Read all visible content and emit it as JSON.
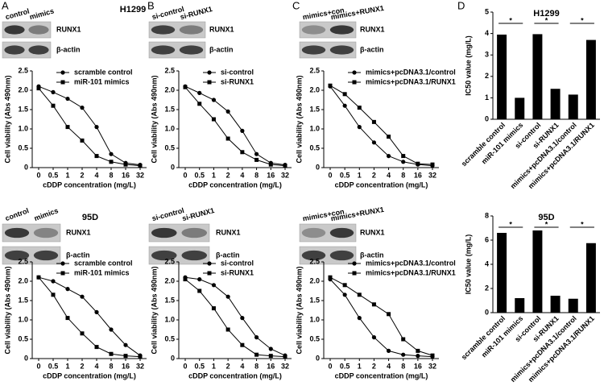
{
  "letters": [
    "A",
    "B",
    "C",
    "D"
  ],
  "blots": [
    {
      "cell_line": "H1299",
      "lanes": [
        "control",
        "mimics"
      ],
      "rows": [
        "RUNX1",
        "β-actin"
      ]
    },
    {
      "lanes": [
        "si-control",
        "si-RUNX1"
      ],
      "rows": [
        "RUNX1",
        "β-actin"
      ]
    },
    {
      "lanes": [
        "mimics+con",
        "mimics+RUNX1"
      ],
      "rows": [
        "RUNX1",
        "β-actin"
      ]
    },
    {
      "cell_line": "95D",
      "lanes": [
        "control",
        "mimics"
      ],
      "rows": [
        "RUNX1",
        "β-actin"
      ]
    },
    {
      "lanes": [
        "si-control",
        "si-RUNX1"
      ],
      "rows": [
        "RUNX1",
        "β-actin"
      ]
    },
    {
      "lanes": [
        "mimics+con",
        "mimics+RUNX1"
      ],
      "rows": [
        "RUNX1",
        "β-actin"
      ]
    }
  ],
  "chart_data": [
    {
      "type": "line",
      "xlabel": "cDDP concentration (mg/L)",
      "ylabel": "Cell viability (Abs 490nm)",
      "categories": [
        "0",
        "0.5",
        "1",
        "2",
        "4",
        "8",
        "16",
        "32"
      ],
      "ylim": [
        0,
        2.5
      ],
      "yticks": [
        0,
        0.5,
        {
          "value": 1,
          "label": "1.0"
        },
        1.5,
        {
          "value": 2,
          "label": "2.0"
        },
        2.5
      ],
      "series": [
        {
          "name": "scramble control",
          "color": "#000000",
          "marker": "circle",
          "values": [
            2.1,
            1.95,
            1.78,
            1.55,
            1.05,
            0.35,
            0.12,
            0.07
          ]
        },
        {
          "name": "miR-101 mimics",
          "color": "#000000",
          "marker": "square",
          "values": [
            2.05,
            1.6,
            1.05,
            0.7,
            0.3,
            0.15,
            0.08,
            0.05
          ]
        }
      ]
    },
    {
      "type": "line",
      "xlabel": "cDDP concentration (mg/L)",
      "ylabel": "Cell viability (Abs 490nm)",
      "categories": [
        "0",
        "0.5",
        "1",
        "2",
        "4",
        "8",
        "16",
        "32"
      ],
      "ylim": [
        0,
        2.5
      ],
      "yticks": [
        0,
        0.5,
        {
          "value": 1,
          "label": "1.0"
        },
        1.5,
        {
          "value": 2,
          "label": "2.0"
        },
        2.5
      ],
      "series": [
        {
          "name": "si-control",
          "color": "#000000",
          "marker": "circle",
          "values": [
            2.1,
            1.93,
            1.75,
            1.45,
            0.95,
            0.35,
            0.12,
            0.07
          ]
        },
        {
          "name": "si-RUNX1",
          "color": "#000000",
          "marker": "square",
          "values": [
            2.08,
            1.65,
            1.25,
            0.75,
            0.4,
            0.2,
            0.08,
            0.05
          ]
        }
      ]
    },
    {
      "type": "line",
      "xlabel": "cDDP concentration (mg/L)",
      "ylabel": "Cell viability (Abs 490nm)",
      "categories": [
        "0",
        "0.5",
        "1",
        "2",
        "4",
        "8",
        "16",
        "32"
      ],
      "ylim": [
        0,
        2.5
      ],
      "yticks": [
        0,
        0.5,
        {
          "value": 1,
          "label": "1.0"
        },
        1.5,
        {
          "value": 2,
          "label": "2.0"
        },
        2.5
      ],
      "series": [
        {
          "name": "mimics+pcDNA3.1/control",
          "color": "#000000",
          "marker": "circle",
          "values": [
            2.1,
            1.6,
            1.05,
            0.65,
            0.3,
            0.15,
            0.08,
            0.05
          ]
        },
        {
          "name": "mimics+pcDNA3.1/RUNX1",
          "color": "#000000",
          "marker": "square",
          "values": [
            2.12,
            1.9,
            1.55,
            1.18,
            0.8,
            0.3,
            0.1,
            0.08
          ]
        }
      ]
    },
    {
      "type": "bar",
      "title": "H1299",
      "ylabel": "IC50 value (mg/L)",
      "categories": [
        "scramble control",
        "miR-101 mimics",
        "si-control",
        "si-RUNX1",
        "mimics+pcDNA3.1/control",
        "mimics+pcDNA3.1/RUNX1"
      ],
      "values": [
        3.95,
        1.0,
        3.97,
        1.42,
        1.15,
        3.7
      ],
      "color": "#000000",
      "ylim": [
        0,
        5
      ],
      "yticks": [
        0,
        1,
        2,
        3,
        4,
        5
      ],
      "annotations": [
        "*",
        "*",
        "*"
      ]
    },
    {
      "type": "line",
      "xlabel": "cDDP concentration (mg/L)",
      "ylabel": "Cell viability (Abs 490nm)",
      "categories": [
        "0",
        "0.5",
        "1",
        "2",
        "4",
        "8",
        "16",
        "32"
      ],
      "ylim": [
        0,
        2.5
      ],
      "yticks": [
        0,
        0.5,
        {
          "value": 1,
          "label": "1.0"
        },
        1.5,
        {
          "value": 2,
          "label": "2.0"
        },
        2.5
      ],
      "series": [
        {
          "name": "scramble control",
          "color": "#000000",
          "marker": "circle",
          "values": [
            2.1,
            2.0,
            1.8,
            1.6,
            1.2,
            0.75,
            0.35,
            0.08
          ]
        },
        {
          "name": "miR-101 mimics",
          "color": "#000000",
          "marker": "square",
          "values": [
            2.1,
            1.65,
            1.05,
            0.65,
            0.3,
            0.12,
            0.07,
            0.05
          ]
        }
      ]
    },
    {
      "type": "line",
      "xlabel": "cDDP concentration (mg/L)",
      "ylabel": "Cell viability (Abs 490nm)",
      "categories": [
        "0",
        "0.5",
        "1",
        "2",
        "4",
        "8",
        "16",
        "32"
      ],
      "ylim": [
        0,
        2.5
      ],
      "yticks": [
        0,
        0.5,
        {
          "value": 1,
          "label": "1.0"
        },
        1.5,
        {
          "value": 2,
          "label": "2.0"
        },
        2.5
      ],
      "series": [
        {
          "name": "si-control",
          "color": "#000000",
          "marker": "circle",
          "values": [
            2.1,
            2.05,
            1.9,
            1.6,
            1.05,
            0.55,
            0.25,
            0.08
          ]
        },
        {
          "name": "si-RUNX1",
          "color": "#000000",
          "marker": "square",
          "values": [
            2.05,
            1.75,
            1.3,
            0.75,
            0.35,
            0.1,
            0.07,
            0.05
          ]
        }
      ]
    },
    {
      "type": "line",
      "xlabel": "cDDP concentration (mg/L)",
      "ylabel": "Cell viability (Abs 490nm)",
      "categories": [
        "0",
        "0.5",
        "1",
        "2",
        "4",
        "8",
        "16",
        "32"
      ],
      "ylim": [
        0,
        2.5
      ],
      "yticks": [
        0,
        0.5,
        {
          "value": 1,
          "label": "1.0"
        },
        1.5,
        {
          "value": 2,
          "label": "2.0"
        },
        2.5
      ],
      "series": [
        {
          "name": "mimics+pcDNA3.1/control",
          "color": "#000000",
          "marker": "circle",
          "values": [
            2.05,
            1.65,
            1.05,
            0.55,
            0.2,
            0.1,
            0.07,
            0.05
          ]
        },
        {
          "name": "mimics+pcDNA3.1/RUNX1",
          "color": "#000000",
          "marker": "square",
          "values": [
            2.1,
            1.9,
            1.65,
            1.4,
            1.15,
            0.5,
            0.2,
            0.08
          ]
        }
      ]
    },
    {
      "type": "bar",
      "title": "95D",
      "ylabel": "IC50 value (mg/L)",
      "categories": [
        "scramble control",
        "miR-101 mimics",
        "si-control",
        "si-RUNX1",
        "mimics+pcDNA3.1/control",
        "mimics+pcDNA3.1/RUNX1"
      ],
      "values": [
        6.6,
        1.2,
        6.8,
        1.4,
        1.15,
        5.75
      ],
      "color": "#000000",
      "ylim": [
        0,
        8
      ],
      "yticks": [
        0,
        2,
        4,
        6,
        8
      ],
      "annotations": [
        "*",
        "*",
        "*"
      ]
    }
  ]
}
